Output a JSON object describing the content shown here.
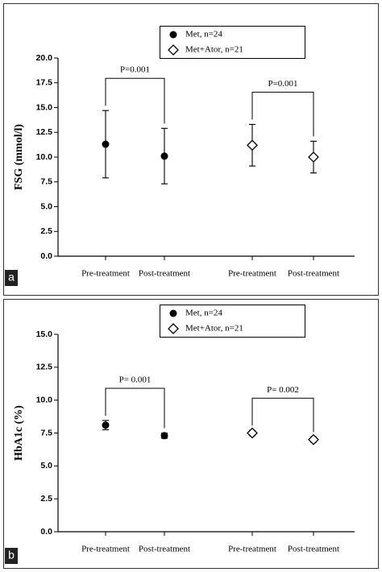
{
  "chart_data": [
    {
      "type": "errorbar",
      "panel_label": "a",
      "ylabel": "FSG (mmol/l)",
      "categories": [
        "Pre-treatment",
        "Post-treatment",
        "Pre-treatment",
        "Post-treatment"
      ],
      "series": [
        {
          "name": "Met, n=24",
          "marker": "circle",
          "color": "#000000",
          "values": [
            11.3,
            10.1,
            null,
            null
          ],
          "errors": [
            3.4,
            2.8,
            null,
            null
          ]
        },
        {
          "name": "Met+Ator, n=21",
          "marker": "diamond",
          "color": "#000000",
          "values": [
            null,
            null,
            11.2,
            10.0
          ],
          "errors": [
            null,
            null,
            2.1,
            1.6
          ]
        }
      ],
      "annotations": [
        "P=0.001",
        "P=0.001"
      ],
      "ylim": [
        0,
        20
      ],
      "yticks": [
        {
          "value": 0,
          "label": "0.0"
        },
        {
          "value": 2.5,
          "label": "2.5"
        },
        {
          "value": 5,
          "label": "5.0"
        },
        {
          "value": 7.5,
          "label": "7.5"
        },
        {
          "value": 10,
          "label": "10.0"
        },
        {
          "value": 12.5,
          "label": "12.5"
        },
        {
          "value": 15,
          "label": "15.0"
        },
        {
          "value": 17.5,
          "label": "17.5"
        },
        {
          "value": 20,
          "label": "20.0"
        }
      ]
    },
    {
      "type": "errorbar",
      "panel_label": "b",
      "ylabel": "HbA1c (%)",
      "categories": [
        "Pre-treatment",
        "Post-treatment",
        "Pre-treatment",
        "Post-treatment"
      ],
      "series": [
        {
          "name": "Met, n=24",
          "marker": "circle",
          "color": "#000000",
          "values": [
            8.1,
            7.3,
            null,
            null
          ],
          "errors": [
            0.35,
            0.2,
            null,
            null
          ]
        },
        {
          "name": "Met+Ator, n=21",
          "marker": "diamond",
          "color": "#000000",
          "values": [
            null,
            null,
            7.5,
            7.0
          ],
          "errors": [
            null,
            null,
            0.2,
            0.2
          ]
        }
      ],
      "annotations": [
        "P= 0.001",
        "P= 0.002"
      ],
      "ylim": [
        0,
        15
      ],
      "yticks": [
        {
          "value": 0,
          "label": "0.0"
        },
        {
          "value": 2.5,
          "label": "2.5"
        },
        {
          "value": 5,
          "label": "5.0"
        },
        {
          "value": 7.5,
          "label": "7.5"
        },
        {
          "value": 10,
          "label": "10.0"
        },
        {
          "value": 12.5,
          "label": "12.5"
        },
        {
          "value": 15,
          "label": "15.0"
        }
      ]
    }
  ]
}
